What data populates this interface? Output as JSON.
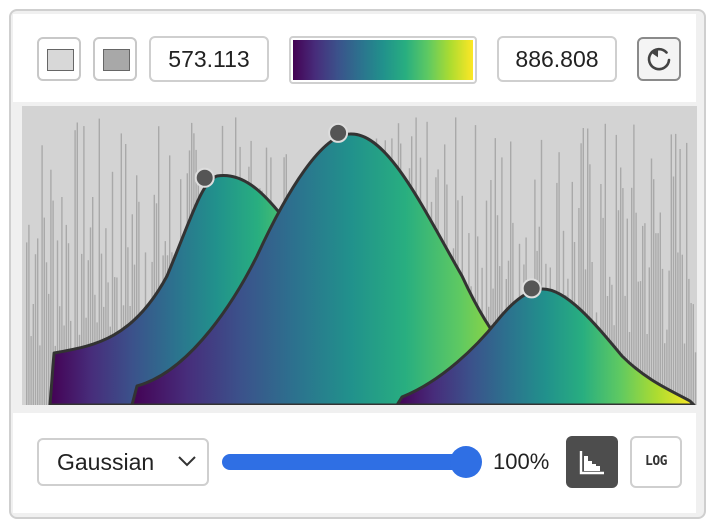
{
  "controls": {
    "swatch_low": {
      "icon": "light-gray-swatch-icon",
      "color": "#d8d8d8"
    },
    "swatch_high": {
      "icon": "dark-gray-swatch-icon",
      "color": "#a8a8a8"
    },
    "min_value": "573.113",
    "max_value": "886.808",
    "colormap": {
      "name_icon": "viridis-gradient-icon",
      "stops": [
        "#440154",
        "#3b528b",
        "#21918c",
        "#5ec962",
        "#fde725"
      ]
    },
    "reset_icon": "reset-icon"
  },
  "footer": {
    "interpolation_selected": "Gaussian",
    "opacity_label": "100%",
    "opacity_value": 1.0,
    "histogram_icon": "histogram-icon",
    "log_label": "LOG"
  },
  "colors": {
    "slider": "#2f6fe4",
    "histogram_bars": "#a9a9a9",
    "plot_background": "#d3d3d3",
    "curve_stroke": "#333333",
    "handle": "#555555"
  },
  "chart_data": {
    "type": "area",
    "xlim": [
      573.113,
      886.808
    ],
    "ylim": [
      0,
      1
    ],
    "series": [
      {
        "peak_x": 658,
        "peak_y": 0.76
      },
      {
        "peak_x": 720,
        "peak_y": 0.91
      },
      {
        "peak_x": 810,
        "peak_y": 0.39
      }
    ]
  }
}
